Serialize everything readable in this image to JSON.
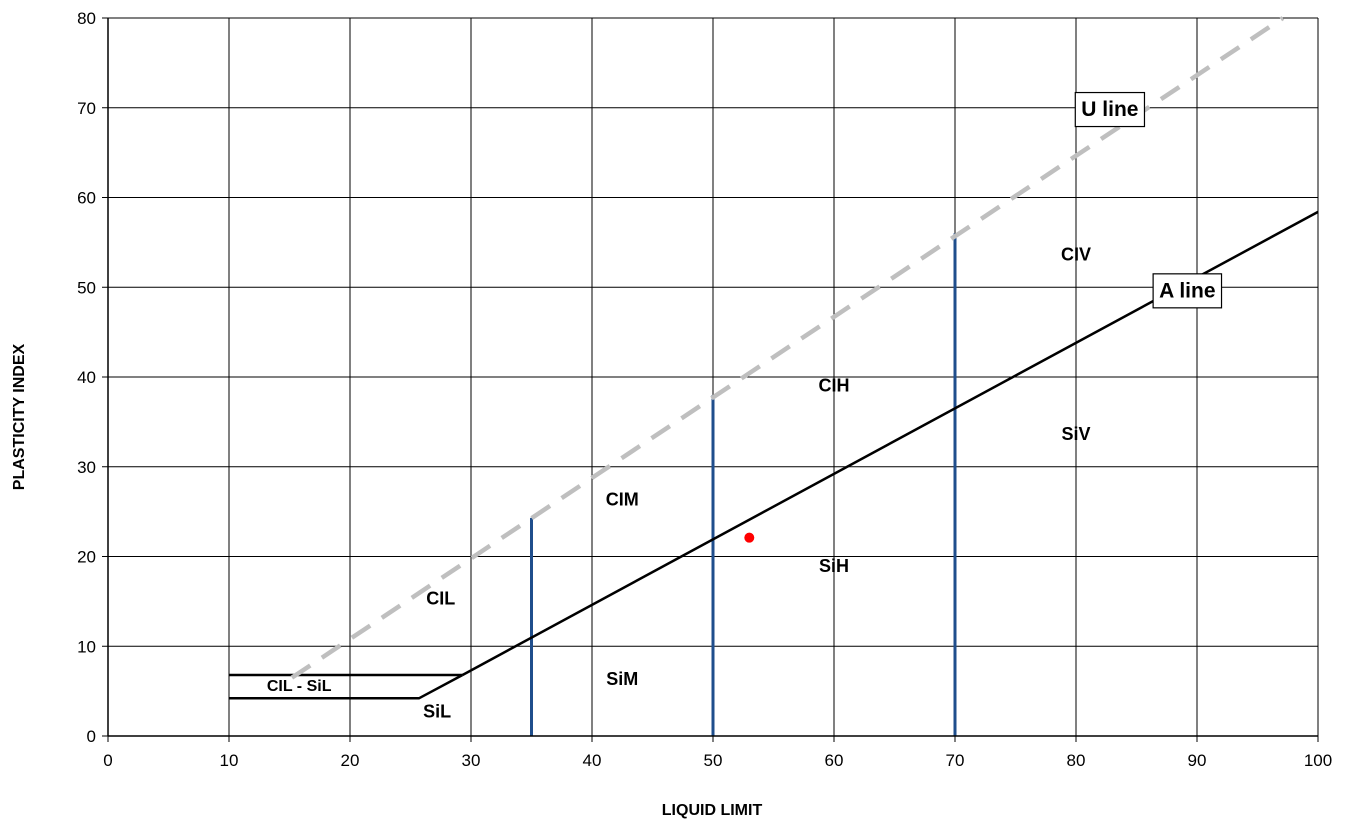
{
  "chart_data": {
    "type": "line",
    "title": "",
    "xlabel": "LIQUID LIMIT",
    "ylabel": "PLASTICITY INDEX",
    "xlim": [
      0,
      100
    ],
    "ylim": [
      0,
      80
    ],
    "xticks": [
      0,
      10,
      20,
      30,
      40,
      50,
      60,
      70,
      80,
      90,
      100
    ],
    "yticks": [
      0,
      10,
      20,
      30,
      40,
      50,
      60,
      70,
      80
    ],
    "grid": true,
    "series": [
      {
        "name": "U line",
        "style": "dashed",
        "color": "#bfbfbf",
        "points": [
          [
            15.2,
            6.5
          ],
          [
            97.1,
            80
          ]
        ]
      },
      {
        "name": "A line",
        "style": "solid",
        "color": "#000000",
        "points": [
          [
            29.3,
            6.8
          ],
          [
            100,
            58.4
          ]
        ]
      }
    ],
    "boundaries": [
      {
        "label": "",
        "color": "#000000",
        "points": [
          [
            10,
            6.8
          ],
          [
            29.3,
            6.8
          ]
        ]
      },
      {
        "label": "",
        "color": "#000000",
        "points": [
          [
            10,
            4.2
          ],
          [
            25.7,
            4.2
          ],
          [
            29.3,
            6.8
          ]
        ]
      },
      {
        "label": "",
        "color": "#1f4e8c",
        "points": [
          [
            35,
            0
          ],
          [
            35,
            24.3
          ]
        ]
      },
      {
        "label": "",
        "color": "#1f4e8c",
        "points": [
          [
            50,
            0
          ],
          [
            50,
            38
          ]
        ]
      },
      {
        "label": "",
        "color": "#1f4e8c",
        "points": [
          [
            70,
            0
          ],
          [
            70,
            56
          ]
        ]
      }
    ],
    "zone_labels": [
      {
        "text": "CIL - SiL",
        "x": 15.8,
        "y": 5.5,
        "size": "small"
      },
      {
        "text": "SiL",
        "x": 27.2,
        "y": 2.6
      },
      {
        "text": "CIL",
        "x": 27.5,
        "y": 15.2
      },
      {
        "text": "CIM",
        "x": 42.5,
        "y": 26.2
      },
      {
        "text": "SiM",
        "x": 42.5,
        "y": 6.2
      },
      {
        "text": "CIH",
        "x": 60,
        "y": 38.9
      },
      {
        "text": "SiH",
        "x": 60,
        "y": 18.8
      },
      {
        "text": "CIV",
        "x": 80,
        "y": 53.5
      },
      {
        "text": "SiV",
        "x": 80,
        "y": 33.5
      }
    ],
    "callouts": [
      {
        "text": "U line",
        "x": 82.8,
        "y": 69.8
      },
      {
        "text": "A line",
        "x": 89.2,
        "y": 49.6
      }
    ],
    "points": [
      {
        "x": 53,
        "y": 22.1,
        "color": "#ff0000"
      }
    ]
  }
}
